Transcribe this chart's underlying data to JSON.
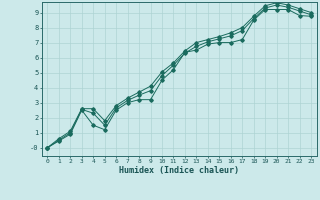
{
  "xlabel": "Humidex (Indice chaleur)",
  "bg_color": "#cce9ea",
  "grid_color": "#aed4d4",
  "line_color": "#1a6b5e",
  "xlim": [
    -0.5,
    23.5
  ],
  "ylim": [
    -0.55,
    9.7
  ],
  "xticks": [
    0,
    1,
    2,
    3,
    4,
    5,
    6,
    7,
    8,
    9,
    10,
    11,
    12,
    13,
    14,
    15,
    16,
    17,
    18,
    19,
    20,
    21,
    22,
    23
  ],
  "yticks": [
    0,
    1,
    2,
    3,
    4,
    5,
    6,
    7,
    8,
    9
  ],
  "ytick_labels": [
    "-0",
    "1",
    "2",
    "3",
    "4",
    "5",
    "6",
    "7",
    "8",
    "9"
  ],
  "line1_x": [
    0,
    1,
    2,
    3,
    4,
    5,
    6,
    7,
    8,
    9,
    10,
    11,
    12,
    13,
    14,
    15,
    16,
    17,
    18,
    19,
    20,
    21,
    22,
    23
  ],
  "line1_y": [
    0.0,
    0.45,
    0.9,
    2.5,
    1.5,
    1.2,
    2.5,
    3.0,
    3.2,
    3.2,
    4.5,
    5.2,
    6.35,
    6.5,
    6.9,
    7.0,
    7.0,
    7.2,
    8.5,
    9.2,
    9.2,
    9.2,
    8.8,
    8.75
  ],
  "line2_x": [
    0,
    1,
    2,
    3,
    4,
    5,
    6,
    7,
    8,
    9,
    10,
    11,
    12,
    13,
    14,
    15,
    16,
    17,
    18,
    19,
    20,
    21,
    22,
    23
  ],
  "line2_y": [
    0.0,
    0.5,
    1.0,
    2.55,
    2.3,
    1.5,
    2.65,
    3.15,
    3.5,
    3.8,
    4.8,
    5.5,
    6.3,
    6.75,
    7.05,
    7.25,
    7.45,
    7.8,
    8.6,
    9.3,
    9.5,
    9.35,
    9.1,
    8.85
  ],
  "line3_x": [
    0,
    1,
    2,
    3,
    4,
    5,
    6,
    7,
    8,
    9,
    10,
    11,
    12,
    13,
    14,
    15,
    16,
    17,
    18,
    19,
    20,
    21,
    22,
    23
  ],
  "line3_y": [
    0.0,
    0.6,
    1.1,
    2.6,
    2.6,
    1.8,
    2.8,
    3.3,
    3.7,
    4.1,
    5.05,
    5.65,
    6.45,
    7.0,
    7.2,
    7.4,
    7.65,
    8.0,
    8.75,
    9.45,
    9.65,
    9.5,
    9.25,
    9.0
  ]
}
